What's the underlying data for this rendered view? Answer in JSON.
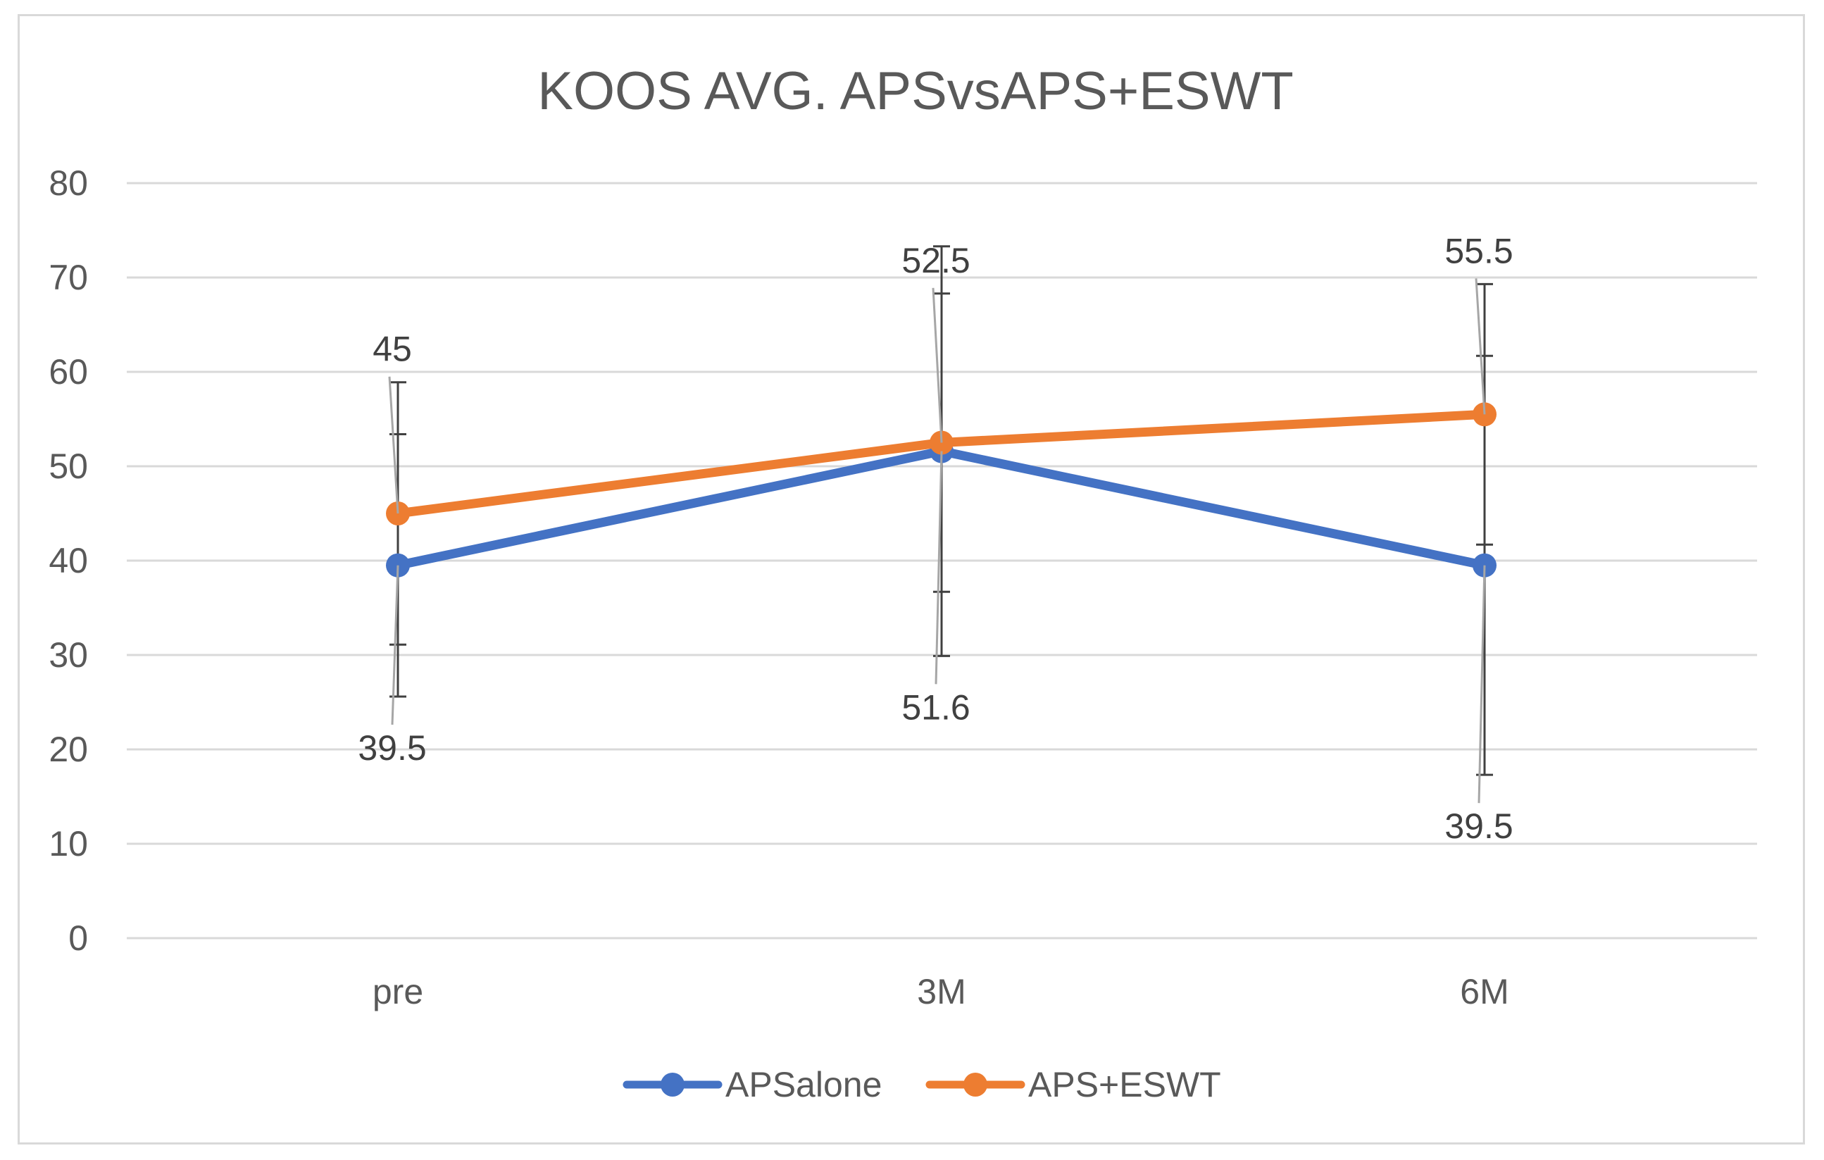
{
  "chart_data": {
    "type": "line",
    "title": "KOOS AVG. APSvsAPS+ESWT",
    "xlabel": "",
    "ylabel": "",
    "ylim": [
      0,
      80
    ],
    "y_ticks": [
      0,
      10,
      20,
      30,
      40,
      50,
      60,
      70,
      80
    ],
    "categories": [
      "pre",
      "3M",
      "6M"
    ],
    "grid": true,
    "legend_position": "bottom",
    "series": [
      {
        "name": "APSalone",
        "color": "#4472c4",
        "values": [
          39.5,
          51.6,
          39.5
        ],
        "error_low": [
          25.6,
          29.9,
          17.3
        ],
        "error_high": [
          53.4,
          73.3,
          61.7
        ],
        "data_labels": [
          "39.5",
          "51.6",
          "39.5"
        ],
        "label_position": "below"
      },
      {
        "name": "APS+ESWT",
        "color": "#ed7d31",
        "values": [
          45,
          52.5,
          55.5
        ],
        "error_low": [
          31.1,
          36.7,
          41.7
        ],
        "error_high": [
          58.9,
          68.3,
          69.3
        ],
        "data_labels": [
          "45",
          "52.5",
          "55.5"
        ],
        "label_position": "above"
      }
    ],
    "error_bar_color": "#404040"
  }
}
